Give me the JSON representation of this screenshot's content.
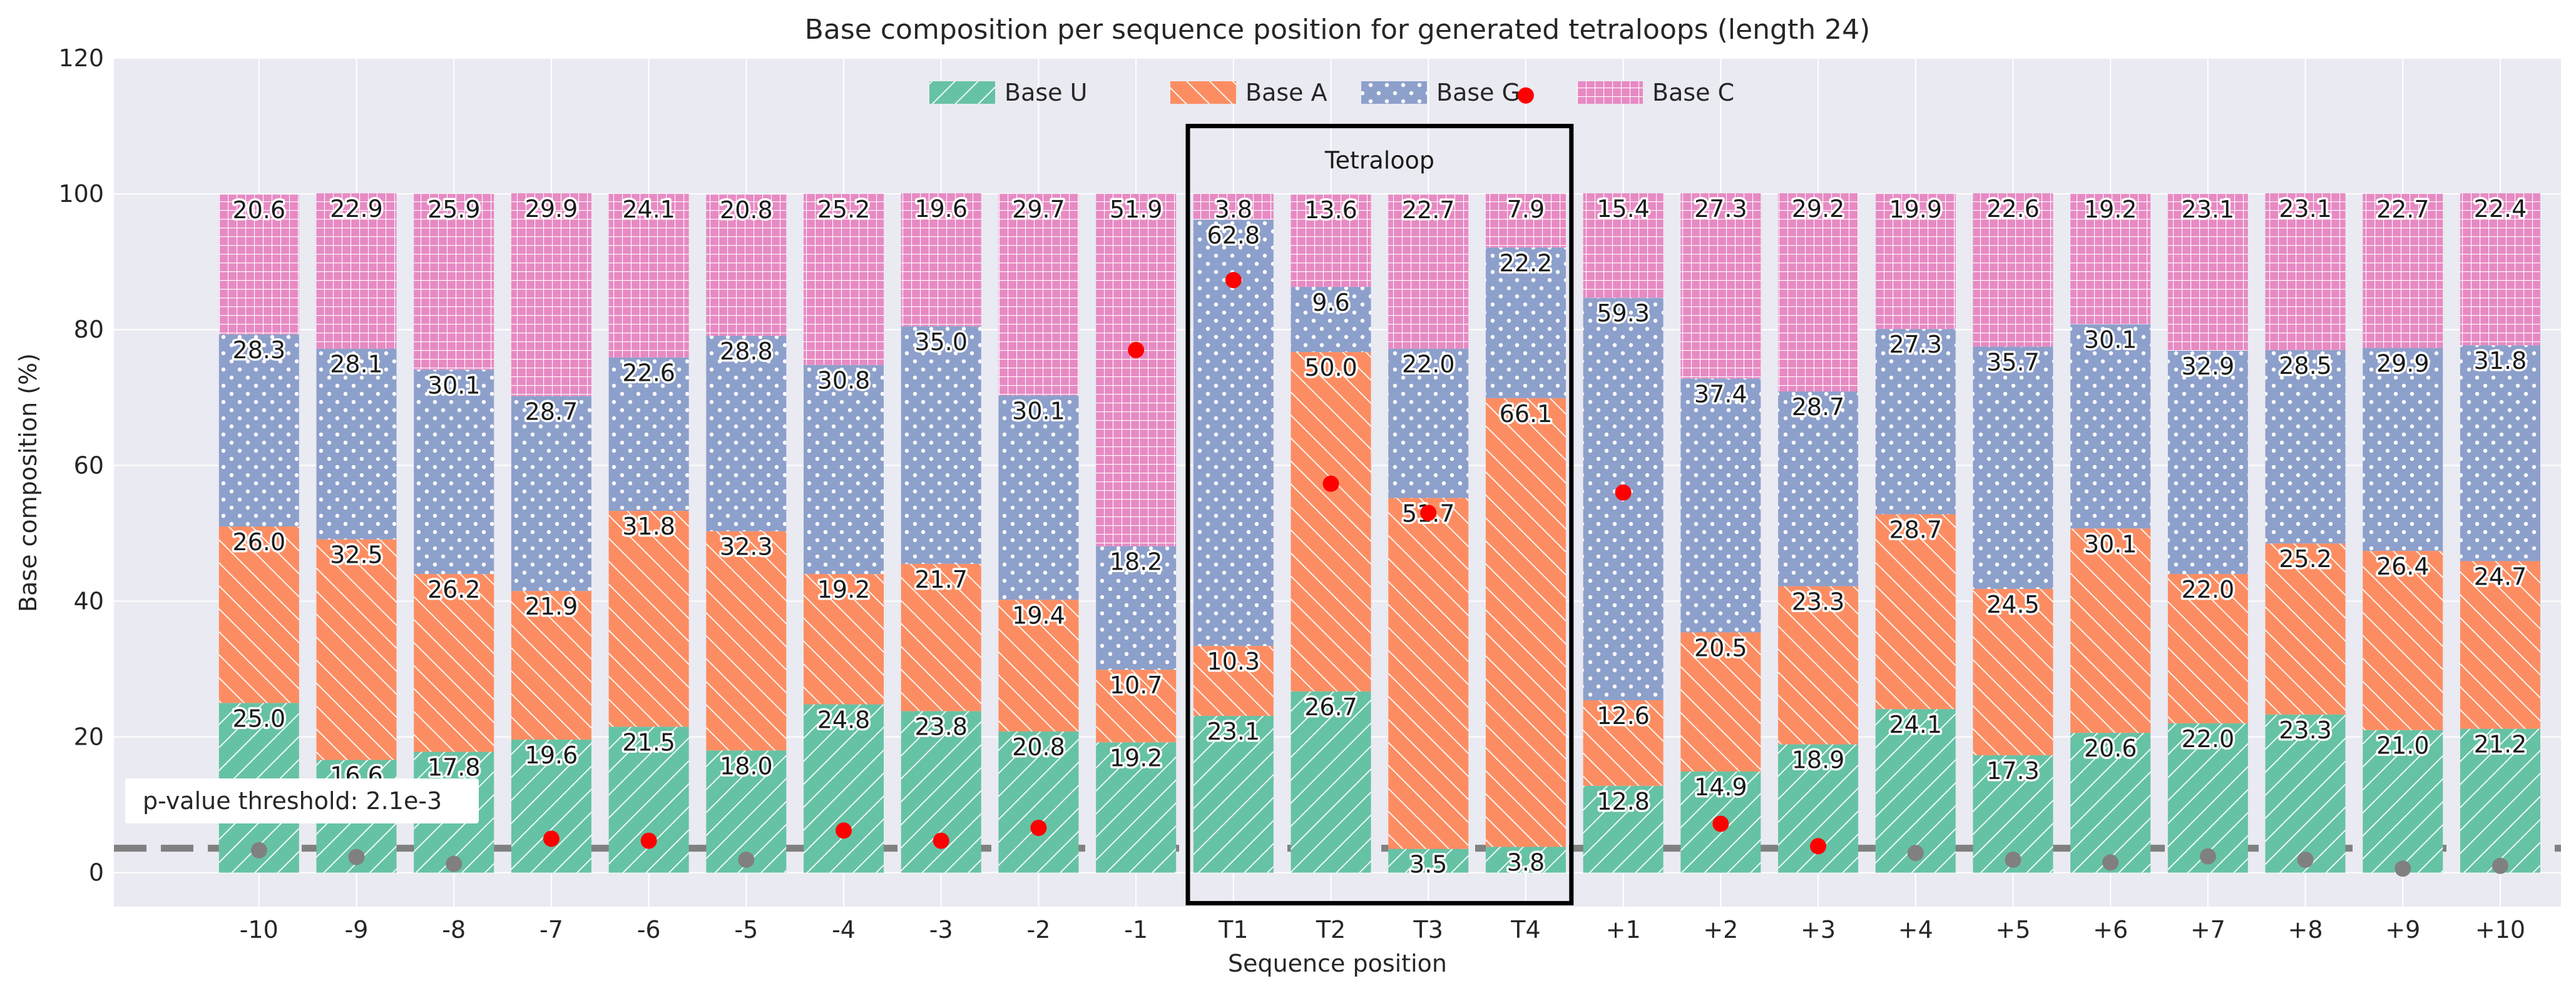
{
  "chart_data": {
    "type": "bar",
    "stacked": true,
    "title": "Base composition per sequence position for generated tetraloops (length 24)",
    "xlabel": "Sequence position",
    "ylabel": "Base composition (%)",
    "ylim": [
      0,
      120
    ],
    "yticks": [
      0,
      20,
      40,
      60,
      80,
      100,
      120
    ],
    "grid": true,
    "legend_position": "top-center",
    "categories": [
      "-10",
      "-9",
      "-8",
      "-7",
      "-6",
      "-5",
      "-4",
      "-3",
      "-2",
      "-1",
      "T1",
      "T2",
      "T3",
      "T4",
      "+1",
      "+2",
      "+3",
      "+4",
      "+5",
      "+6",
      "+7",
      "+8",
      "+9",
      "+10"
    ],
    "series": [
      {
        "name": "Base U",
        "color": "#66c2a5",
        "pattern": "diagonal-forward",
        "values": [
          25.0,
          16.6,
          17.8,
          19.6,
          21.5,
          18.0,
          24.8,
          23.8,
          20.8,
          19.2,
          23.1,
          26.7,
          3.5,
          3.8,
          12.8,
          14.9,
          18.9,
          24.1,
          17.3,
          20.6,
          22.0,
          23.3,
          21.0,
          21.2
        ]
      },
      {
        "name": "Base A",
        "color": "#fc8d62",
        "pattern": "diagonal-back",
        "values": [
          26.0,
          32.5,
          26.2,
          21.9,
          31.8,
          32.3,
          19.2,
          21.7,
          19.4,
          10.7,
          10.3,
          50.0,
          51.7,
          66.1,
          12.6,
          20.5,
          23.3,
          28.7,
          24.5,
          30.1,
          22.0,
          25.2,
          26.4,
          24.7
        ]
      },
      {
        "name": "Base G",
        "color": "#8da0cb",
        "pattern": "dots",
        "values": [
          28.3,
          28.1,
          30.1,
          28.7,
          22.6,
          28.8,
          30.8,
          35.0,
          30.1,
          18.2,
          62.8,
          9.6,
          22.0,
          22.2,
          59.3,
          37.4,
          28.7,
          27.3,
          35.7,
          30.1,
          32.9,
          28.5,
          29.9,
          31.8
        ]
      },
      {
        "name": "Base C",
        "color": "#e78ac3",
        "pattern": "grid",
        "values": [
          20.6,
          22.9,
          25.9,
          29.9,
          24.1,
          20.8,
          25.2,
          19.6,
          29.7,
          51.9,
          3.8,
          13.6,
          22.7,
          7.9,
          15.4,
          27.3,
          29.2,
          19.9,
          22.6,
          19.2,
          23.1,
          23.1,
          22.7,
          22.4
        ]
      }
    ],
    "data_labels": {
      "Base U": [
        "25.0",
        "16.6",
        "17.8",
        "19.6",
        "21.5",
        "18.0",
        "24.8",
        "23.8",
        "20.8",
        "19.2",
        "23.1",
        "26.7",
        "3.5",
        "3.8",
        "12.8",
        "14.9",
        "18.9",
        "24.1",
        "17.3",
        "20.6",
        "22.0",
        "23.3",
        "21.0",
        "21.2"
      ],
      "Base A": [
        "26.0",
        "32.5",
        "26.2",
        "21.9",
        "31.8",
        "32.3",
        "19.2",
        "21.7",
        "19.4",
        "10.7",
        "10.3",
        "50.0",
        "51.7",
        "66.1",
        "12.6",
        "20.5",
        "23.3",
        "28.7",
        "24.5",
        "30.1",
        "22.0",
        "25.2",
        "26.4",
        "24.7"
      ],
      "Base G": [
        "28.3",
        "28.1",
        "30.1",
        "28.7",
        "22.6",
        "28.8",
        "30.8",
        "35.0",
        "30.1",
        "18.2",
        "62.8",
        "9.6",
        "22.0",
        "22.2",
        "59.3",
        "37.4",
        "28.7",
        "27.3",
        "35.7",
        "30.1",
        "32.9",
        "28.5",
        "29.9",
        "31.8"
      ],
      "Base C": [
        "20.6",
        "22.9",
        "25.9",
        "29.9",
        "24.1",
        "20.8",
        "25.2",
        "19.6",
        "29.7",
        "51.9",
        "3.8",
        "13.6",
        "22.7",
        "7.9",
        "15.4",
        "27.3",
        "29.2",
        "19.9",
        "22.6",
        "19.2",
        "23.1",
        "23.1",
        "22.7",
        "22.4"
      ]
    },
    "significance_points": {
      "values": [
        3.3,
        2.3,
        1.3,
        5.0,
        4.7,
        1.9,
        6.2,
        4.7,
        6.6,
        77.0,
        87.3,
        57.3,
        53.0,
        114.5,
        56.0,
        7.2,
        3.9,
        2.9,
        1.9,
        1.5,
        2.4,
        1.9,
        0.6,
        1.0
      ],
      "significant": [
        false,
        false,
        false,
        true,
        true,
        false,
        true,
        true,
        true,
        true,
        true,
        true,
        true,
        true,
        true,
        true,
        true,
        false,
        false,
        false,
        false,
        false,
        false,
        false
      ],
      "colors": {
        "significant": "#ff0000",
        "not_significant": "#808080"
      }
    },
    "threshold": {
      "value": 3.6,
      "label": "p-value threshold: 2.1e-3",
      "color": "#808080"
    },
    "highlight_region": {
      "label": "Tetraloop",
      "from": "T1",
      "to": "T4",
      "ymin": -4.5,
      "ymax": 110
    }
  }
}
